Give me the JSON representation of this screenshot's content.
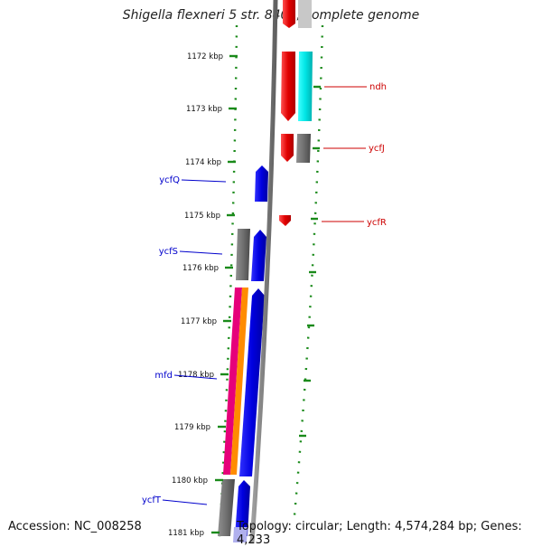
{
  "title": "Shigella flexneri 5 str. 8401, complete genome",
  "footer": {
    "accession": "Accession: NC_008258",
    "topology": "Topology: circular; Length: 4,574,284 bp; Genes: 4,233"
  },
  "colors": {
    "forward_label": "#0000cc",
    "reverse_label": "#cc0000",
    "tick": "#1a8a1a",
    "backbone": "#808080"
  },
  "axis": {
    "ticks": [
      {
        "label": "1172 kbp"
      },
      {
        "label": "1173 kbp"
      },
      {
        "label": "1174 kbp"
      },
      {
        "label": "1175 kbp"
      },
      {
        "label": "1176 kbp"
      },
      {
        "label": "1177 kbp"
      },
      {
        "label": "1178 kbp"
      },
      {
        "label": "1179 kbp"
      },
      {
        "label": "1180 kbp"
      },
      {
        "label": "1181 kbp"
      }
    ]
  },
  "gene_labels": {
    "right": [
      {
        "name": "ndh"
      },
      {
        "name": "ycfJ"
      },
      {
        "name": "ycfR"
      }
    ],
    "left": [
      {
        "name": "ycfQ"
      },
      {
        "name": "ycfS"
      },
      {
        "name": "mfd"
      },
      {
        "name": "ycfT"
      }
    ]
  },
  "features": [
    {
      "name": "top-red-block",
      "color": "#e00000",
      "strand": "reverse"
    },
    {
      "name": "top-grey-block",
      "color": "#c0c0c0",
      "strand": "reverse"
    },
    {
      "name": "ndh-arrow",
      "color": "#e00000",
      "strand": "reverse"
    },
    {
      "name": "ndh-cyan-block",
      "color": "#00e5e5",
      "strand": "reverse"
    },
    {
      "name": "ycfJ-arrow",
      "color": "#e00000",
      "strand": "reverse"
    },
    {
      "name": "ycfJ-grey-block",
      "color": "#606060",
      "strand": "reverse"
    },
    {
      "name": "ycfQ-arrow",
      "color": "#0000e0",
      "strand": "forward"
    },
    {
      "name": "ycfR-arrow",
      "color": "#e00000",
      "strand": "reverse"
    },
    {
      "name": "ycfS-grey-block",
      "color": "#707070",
      "strand": "forward"
    },
    {
      "name": "ycfS-arrow",
      "color": "#0000e0",
      "strand": "forward"
    },
    {
      "name": "magenta-block",
      "color": "#e6007a",
      "strand": "forward"
    },
    {
      "name": "orange-block",
      "color": "#ff8c00",
      "strand": "forward"
    },
    {
      "name": "mfd-arrow",
      "color": "#0000e0",
      "strand": "forward"
    },
    {
      "name": "ycfT-grey-block",
      "color": "#555555",
      "strand": "forward"
    },
    {
      "name": "ycfT-arrow",
      "color": "#0000e0",
      "strand": "forward"
    },
    {
      "name": "ycfT-light-block",
      "color": "#b0b0ee",
      "strand": "forward"
    }
  ]
}
